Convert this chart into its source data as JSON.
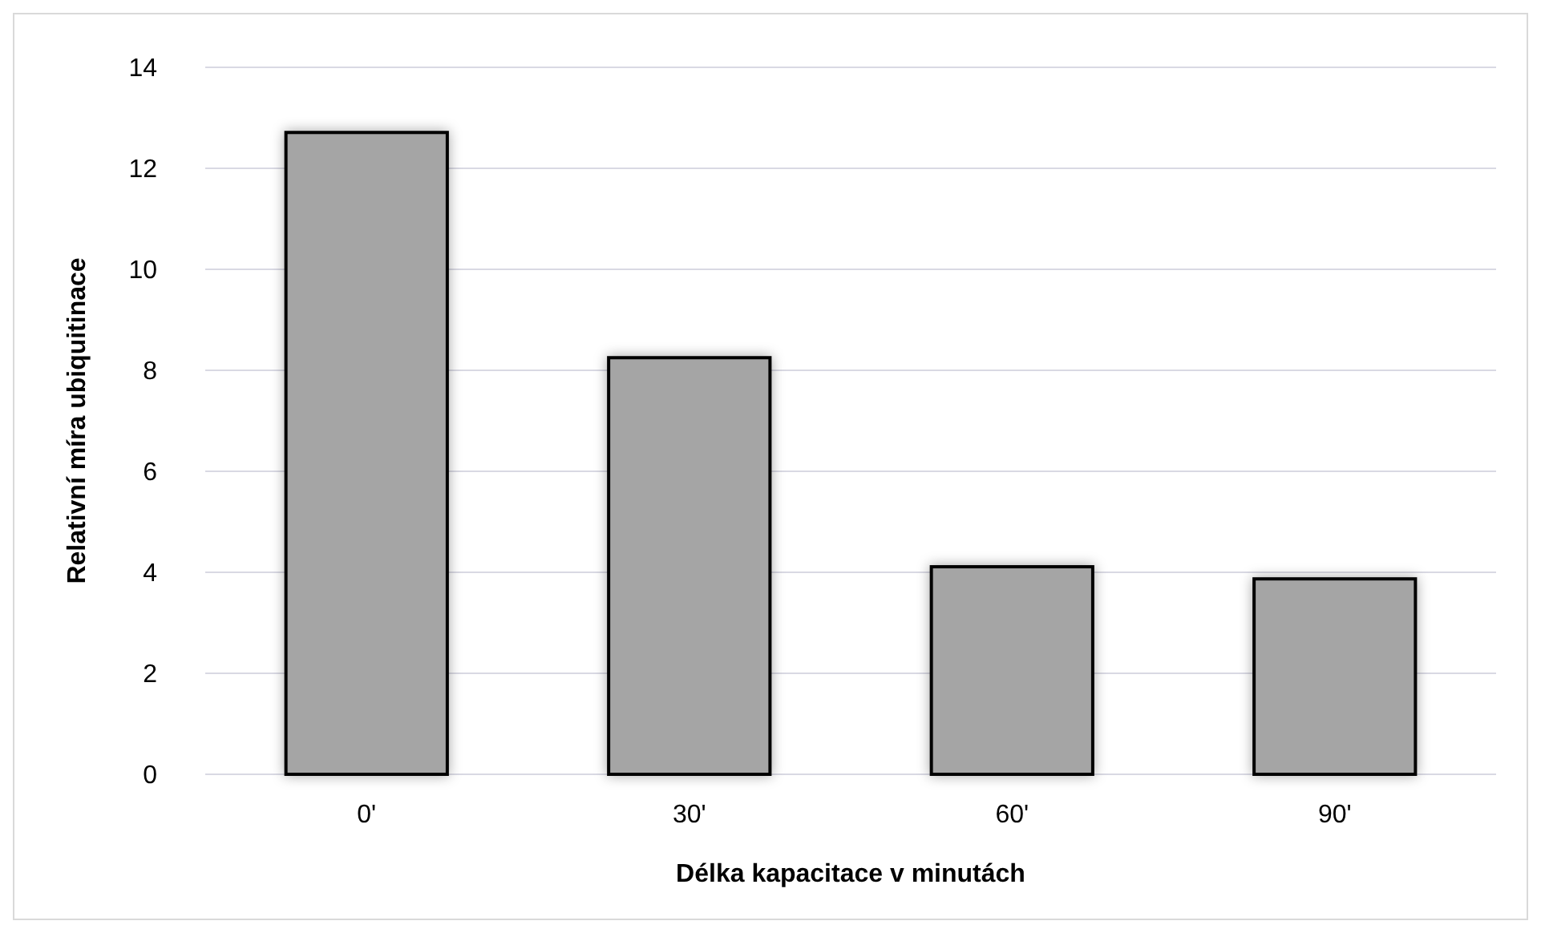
{
  "chart_data": {
    "type": "bar",
    "xlabel": "Délka kapacitace v minutách",
    "ylabel": "Relativní míra ubiquitinace",
    "categories": [
      "0'",
      "30'",
      "60'",
      "90'"
    ],
    "values": [
      12.71,
      8.25,
      4.11,
      3.87
    ],
    "color": "#a5a5a5",
    "ylim": [
      0,
      14
    ],
    "yticks": [
      0,
      2,
      4,
      6,
      8,
      10,
      12,
      14
    ],
    "grid": "y"
  }
}
